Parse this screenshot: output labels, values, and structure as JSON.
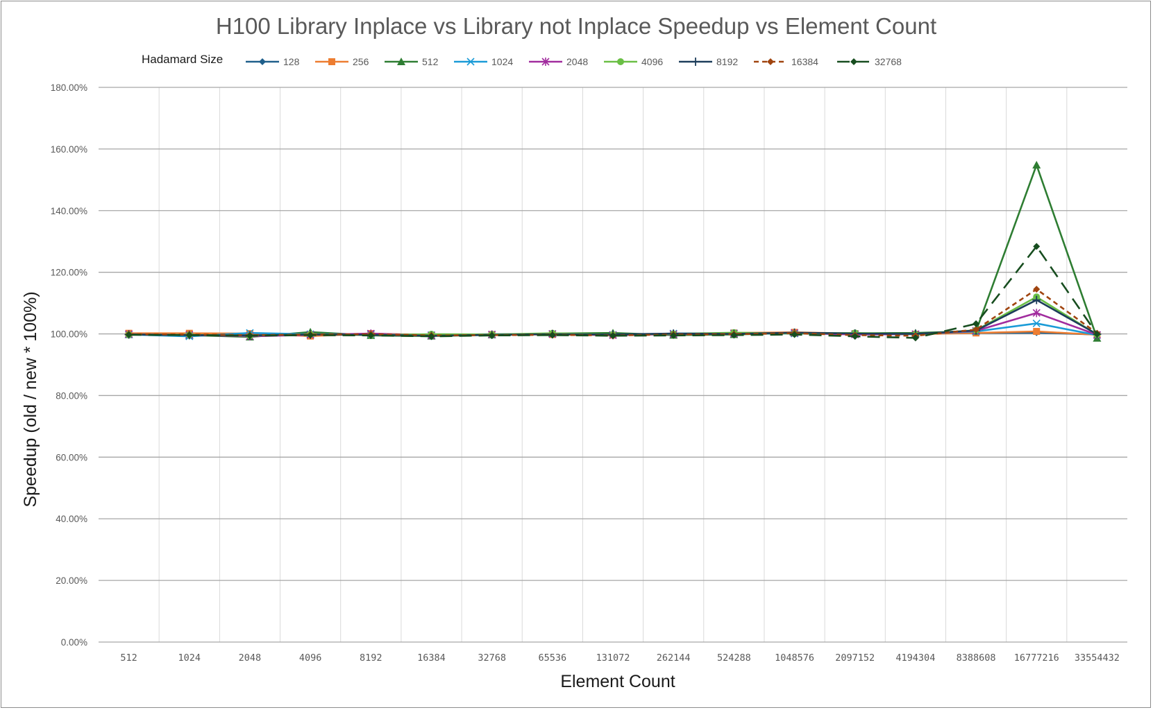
{
  "chart_data": {
    "type": "line",
    "title": "H100 Library Inplace vs Library not Inplace Speedup vs Element Count",
    "legend_title": "Hadamard Size",
    "legend_position": "top",
    "xlabel": "Element Count",
    "ylabel": "Speedup (old / new * 100%)",
    "ylim": [
      0,
      180
    ],
    "yticks": [
      "0.00%",
      "20.00%",
      "40.00%",
      "60.00%",
      "80.00%",
      "100.00%",
      "120.00%",
      "140.00%",
      "160.00%",
      "180.00%"
    ],
    "ytick_values": [
      0,
      20,
      40,
      60,
      80,
      100,
      120,
      140,
      160,
      180
    ],
    "grid": true,
    "categories": [
      "512",
      "1024",
      "2048",
      "4096",
      "8192",
      "16384",
      "32768",
      "65536",
      "131072",
      "262144",
      "524288",
      "1048576",
      "2097152",
      "4194304",
      "8388608",
      "16777216",
      "33554432"
    ],
    "series": [
      {
        "name": "128",
        "color": "#1f5f8b",
        "marker": "diamond",
        "dash": "none",
        "values": [
          100.0,
          99.8,
          99.6,
          99.9,
          99.8,
          99.7,
          99.9,
          99.9,
          99.9,
          100.0,
          100.1,
          100.2,
          100.0,
          100.1,
          100.3,
          100.4,
          99.8
        ]
      },
      {
        "name": "256",
        "color": "#ed7d31",
        "marker": "square",
        "dash": "none",
        "values": [
          100.2,
          100.2,
          100.1,
          99.3,
          100.1,
          99.6,
          99.8,
          99.8,
          99.6,
          99.9,
          100.3,
          100.5,
          100.1,
          99.9,
          100.3,
          100.8,
          99.7
        ]
      },
      {
        "name": "512",
        "color": "#2e7d32",
        "marker": "triangle",
        "dash": "none",
        "values": [
          99.8,
          99.6,
          99.0,
          100.6,
          99.5,
          99.3,
          99.7,
          100.1,
          100.3,
          99.6,
          99.8,
          100.3,
          100.2,
          100.3,
          100.9,
          154.8,
          98.6
        ]
      },
      {
        "name": "1024",
        "color": "#1a9bd7",
        "marker": "x",
        "dash": "none",
        "values": [
          99.8,
          99.2,
          100.3,
          99.9,
          99.9,
          99.6,
          99.8,
          100.0,
          99.7,
          100.1,
          100.2,
          100.1,
          99.9,
          99.9,
          100.8,
          103.4,
          99.6
        ]
      },
      {
        "name": "2048",
        "color": "#a12c9e",
        "marker": "star",
        "dash": "none",
        "values": [
          99.9,
          99.7,
          99.2,
          99.7,
          100.1,
          99.5,
          99.8,
          100.0,
          99.6,
          99.9,
          100.1,
          100.3,
          99.8,
          99.9,
          101.0,
          106.8,
          99.7
        ]
      },
      {
        "name": "4096",
        "color": "#6abf45",
        "marker": "circle",
        "dash": "none",
        "values": [
          99.8,
          99.7,
          99.4,
          99.9,
          99.6,
          99.9,
          99.8,
          100.2,
          99.8,
          100.0,
          100.4,
          100.1,
          100.3,
          99.9,
          101.2,
          112.0,
          99.8
        ]
      },
      {
        "name": "8192",
        "color": "#1c3d5a",
        "marker": "plus",
        "dash": "none",
        "values": [
          99.8,
          99.6,
          99.5,
          99.8,
          99.7,
          99.4,
          99.7,
          99.9,
          99.8,
          100.1,
          100.0,
          100.4,
          100.1,
          100.0,
          101.1,
          111.0,
          99.9
        ]
      },
      {
        "name": "16384",
        "color": "#a0440f",
        "marker": "diamond",
        "dash": "short",
        "values": [
          99.9,
          99.8,
          99.6,
          99.8,
          99.9,
          99.5,
          99.6,
          99.7,
          99.5,
          99.8,
          99.9,
          100.2,
          99.6,
          99.4,
          101.4,
          114.5,
          100.2
        ]
      },
      {
        "name": "32768",
        "color": "#174d1f",
        "marker": "diamond",
        "dash": "long",
        "values": [
          99.7,
          99.6,
          99.4,
          99.6,
          99.5,
          99.2,
          99.5,
          99.6,
          99.4,
          99.5,
          99.6,
          99.8,
          99.2,
          98.7,
          103.3,
          128.4,
          99.9
        ]
      }
    ]
  }
}
